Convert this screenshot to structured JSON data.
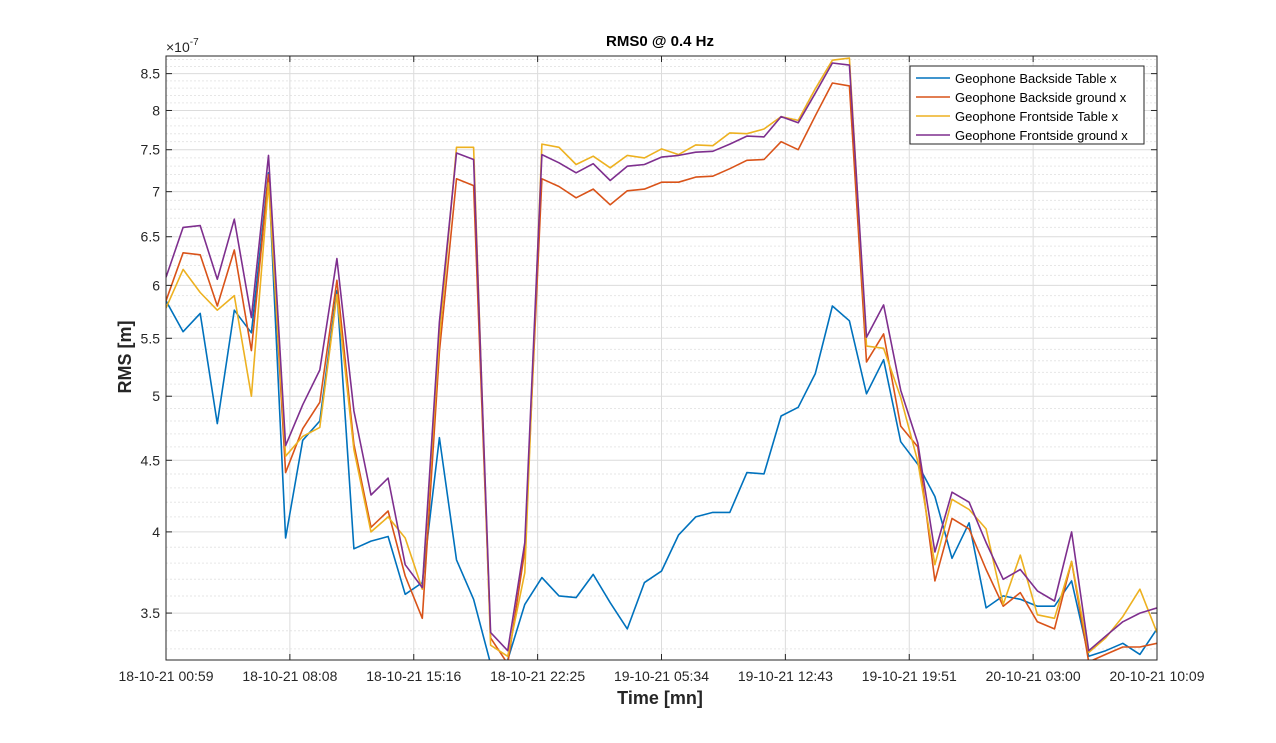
{
  "chart_data": {
    "type": "line",
    "title": "RMS0 @ 0.4 Hz",
    "xlabel": "Time [mn]",
    "ylabel": "RMS [m]",
    "y_exponent_label": "×10",
    "y_exponent_power": "-7",
    "yscale": "log",
    "ylim": [
      3.24,
      8.75
    ],
    "y_ticks": [
      3.5,
      4,
      4.5,
      5,
      5.5,
      6,
      6.5,
      7,
      7.5,
      8,
      8.5
    ],
    "y_tick_labels": [
      "3.5",
      "4",
      "4.5",
      "5",
      "5.5",
      "6",
      "6.5",
      "7",
      "7.5",
      "8",
      "8.5"
    ],
    "xlim": [
      0,
      80
    ],
    "x_ticks": [
      0,
      10,
      20,
      30,
      40,
      50,
      60,
      70,
      80
    ],
    "x_tick_labels": [
      "18-10-21 00:59",
      "18-10-21 08:08",
      "18-10-21 15:16",
      "18-10-21 22:25",
      "19-10-21 05:34",
      "19-10-21 12:43",
      "19-10-21 19:51",
      "20-10-21 03:00",
      "20-10-21 10:09"
    ],
    "grid": true,
    "legend_position": "top-right",
    "series": [
      {
        "name": "Geophone Backside Table x",
        "color": "#0072BD",
        "values": [
          5.85,
          5.56,
          5.73,
          4.78,
          5.76,
          5.55,
          7.22,
          3.96,
          4.65,
          4.8,
          5.95,
          3.89,
          3.94,
          3.97,
          3.61,
          3.68,
          4.67,
          3.82,
          3.58,
          3.22,
          3.24,
          3.55,
          3.71,
          3.6,
          3.59,
          3.73,
          3.56,
          3.41,
          3.68,
          3.75,
          3.98,
          4.1,
          4.13,
          4.13,
          4.41,
          4.4,
          4.84,
          4.91,
          5.19,
          5.8,
          5.66,
          5.02,
          5.31,
          4.64,
          4.47,
          4.24,
          3.83,
          4.06,
          3.53,
          3.6,
          3.58,
          3.54,
          3.54,
          3.69,
          3.26,
          3.29,
          3.33,
          3.27,
          3.41
        ]
      },
      {
        "name": "Geophone Backside ground x",
        "color": "#D95319",
        "values": [
          5.85,
          6.33,
          6.31,
          5.8,
          6.36,
          5.39,
          7.2,
          4.41,
          4.74,
          4.95,
          6.05,
          4.62,
          4.03,
          4.14,
          3.72,
          3.47,
          5.38,
          7.15,
          7.07,
          3.36,
          3.22,
          3.88,
          7.15,
          7.06,
          6.93,
          7.03,
          6.85,
          7.01,
          7.03,
          7.11,
          7.11,
          7.17,
          7.18,
          7.27,
          7.37,
          7.38,
          7.6,
          7.5,
          7.93,
          8.37,
          8.33,
          5.29,
          5.54,
          4.76,
          4.6,
          3.69,
          4.09,
          4.02,
          3.76,
          3.54,
          3.62,
          3.45,
          3.41,
          3.81,
          3.23,
          3.27,
          3.31,
          3.31,
          3.33
        ]
      },
      {
        "name": "Geophone Frontside Table x",
        "color": "#EDB120",
        "values": [
          5.78,
          6.16,
          5.93,
          5.76,
          5.9,
          5.0,
          7.1,
          4.53,
          4.68,
          4.75,
          5.91,
          4.58,
          4.0,
          4.1,
          3.96,
          3.64,
          5.5,
          7.53,
          7.53,
          3.32,
          3.26,
          3.74,
          7.57,
          7.53,
          7.32,
          7.42,
          7.28,
          7.43,
          7.4,
          7.51,
          7.44,
          7.56,
          7.55,
          7.71,
          7.7,
          7.76,
          7.92,
          7.87,
          8.29,
          8.69,
          8.72,
          5.43,
          5.41,
          4.99,
          4.49,
          3.79,
          4.22,
          4.15,
          4.02,
          3.55,
          3.85,
          3.49,
          3.47,
          3.81,
          3.28,
          3.36,
          3.48,
          3.64,
          3.39
        ]
      },
      {
        "name": "Geophone Frontside ground x",
        "color": "#7E2F8E",
        "values": [
          6.08,
          6.6,
          6.62,
          6.06,
          6.69,
          5.69,
          7.43,
          4.61,
          4.93,
          5.22,
          6.27,
          4.88,
          4.25,
          4.37,
          3.79,
          3.65,
          5.65,
          7.46,
          7.38,
          3.39,
          3.29,
          3.93,
          7.44,
          7.34,
          7.22,
          7.33,
          7.13,
          7.3,
          7.32,
          7.41,
          7.43,
          7.47,
          7.48,
          7.57,
          7.67,
          7.66,
          7.92,
          7.84,
          8.23,
          8.65,
          8.62,
          5.51,
          5.81,
          5.05,
          4.63,
          3.87,
          4.27,
          4.2,
          3.93,
          3.7,
          3.76,
          3.63,
          3.57,
          4.0,
          3.29,
          3.37,
          3.45,
          3.5,
          3.53
        ]
      }
    ]
  }
}
